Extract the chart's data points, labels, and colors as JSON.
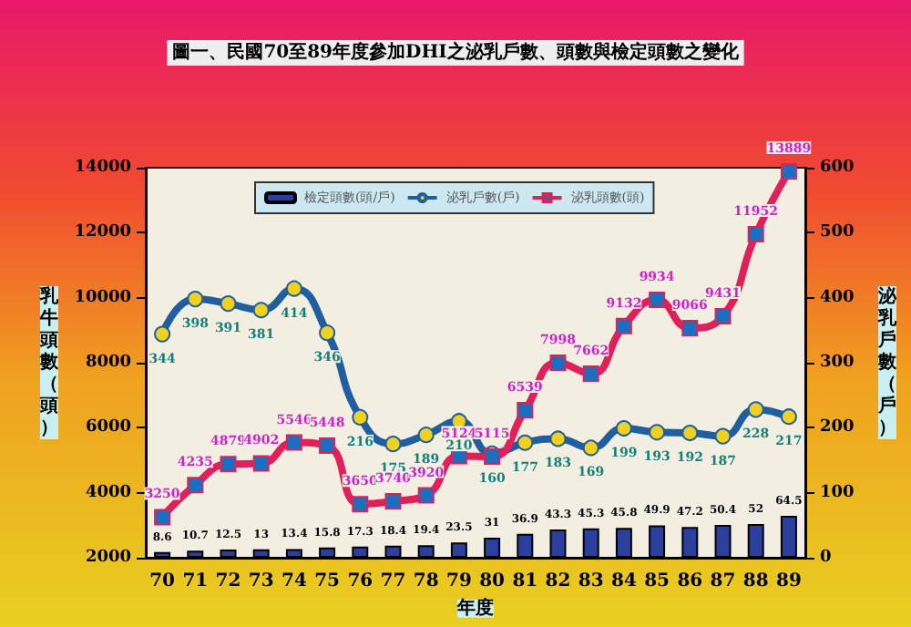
{
  "chart_data": {
    "type": "bar",
    "title": "圖一、民國70至89年度參加DHI之泌乳戶數、頭數與檢定頭數之變化",
    "xlabel": "年度",
    "ylabel": "乳牛頭數（頭）",
    "y2label": "泌乳戶數（戶）",
    "categories": [
      "70",
      "71",
      "72",
      "73",
      "74",
      "75",
      "76",
      "77",
      "78",
      "79",
      "80",
      "81",
      "82",
      "83",
      "84",
      "85",
      "86",
      "87",
      "88",
      "89"
    ],
    "series": [
      {
        "name": "檢定頭數(頭/戶)",
        "axis": "y2",
        "color": "#2b3f9e",
        "values": [
          8.6,
          10.7,
          12.5,
          13.0,
          13.4,
          15.8,
          17.3,
          18.4,
          19.4,
          23.5,
          31.0,
          36.9,
          43.3,
          45.3,
          45.8,
          49.9,
          47.2,
          50.4,
          52,
          64.5
        ]
      },
      {
        "name": "泌乳戶數(戶)",
        "type": "line",
        "axis": "y2",
        "color": "#1f5f9f",
        "marker": "circle",
        "values": [
          344,
          398,
          391,
          381,
          414,
          346,
          216,
          175,
          189,
          210,
          160,
          177,
          183,
          169,
          199,
          193,
          192,
          187,
          228,
          217
        ]
      },
      {
        "name": "泌乳頭數(頭)",
        "type": "line",
        "color": "#e0205a",
        "marker": "square",
        "values": [
          3250,
          4235,
          4879,
          4902,
          5546,
          5448,
          3650,
          3740,
          3920,
          5124,
          5115,
          6539,
          7998,
          7662,
          9132,
          9934,
          9066,
          9431,
          11952,
          13889
        ]
      }
    ],
    "ylim": [
      2000,
      14000
    ],
    "yticks": [
      2000,
      4000,
      6000,
      8000,
      10000,
      12000,
      14000
    ],
    "y2lim": [
      0,
      600
    ],
    "y2ticks": [
      0,
      100,
      200,
      300,
      400,
      500,
      600
    ],
    "data_labels": true,
    "legend": "top",
    "grid": false
  }
}
